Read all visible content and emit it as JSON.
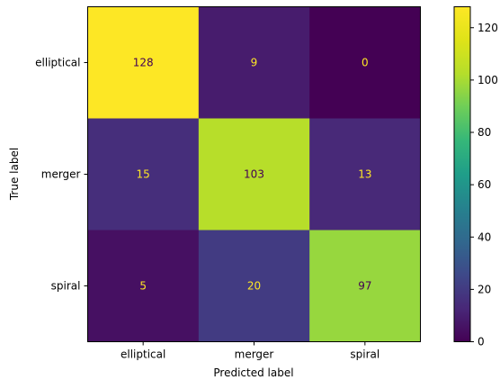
{
  "chart_data": {
    "type": "heatmap",
    "title": "",
    "xlabel": "Predicted label",
    "ylabel": "True label",
    "x_categories": [
      "elliptical",
      "merger",
      "spiral"
    ],
    "y_categories": [
      "elliptical",
      "merger",
      "spiral"
    ],
    "matrix": [
      [
        128,
        9,
        0
      ],
      [
        15,
        103,
        13
      ],
      [
        5,
        20,
        97
      ]
    ],
    "colormap": "viridis",
    "colorbar": {
      "min": 0,
      "max": 128,
      "ticks": [
        0,
        20,
        40,
        60,
        80,
        100,
        120
      ]
    },
    "label_colors": {
      "light": "#fde725",
      "dark": "#440154"
    }
  }
}
